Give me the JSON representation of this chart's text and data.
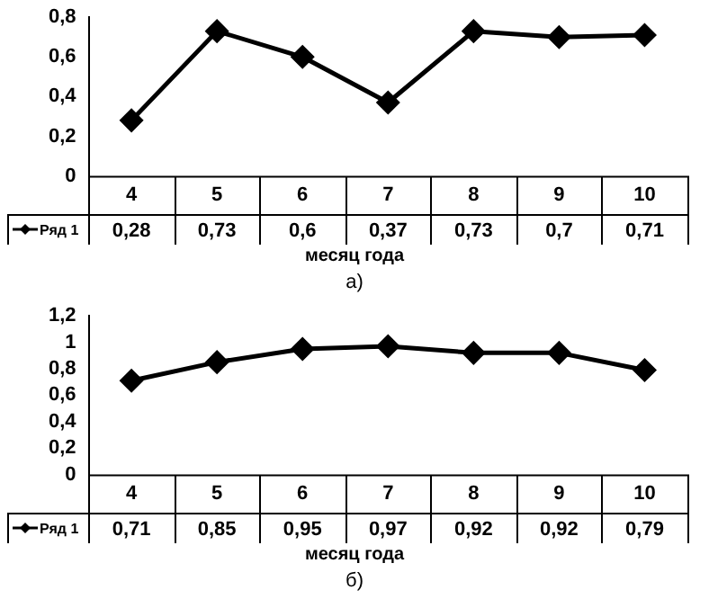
{
  "chart_data": [
    {
      "type": "line",
      "xlabel": "месяц года",
      "annotations": [
        "а)"
      ],
      "categories": [
        "4",
        "5",
        "6",
        "7",
        "8",
        "9",
        "10"
      ],
      "series": [
        {
          "name": "Ряд 1",
          "color": "#000000",
          "values": [
            0.28,
            0.73,
            0.6,
            0.37,
            0.73,
            0.7,
            0.71
          ],
          "value_labels": [
            "0,28",
            "0,73",
            "0,6",
            "0,37",
            "0,73",
            "0,7",
            "0,71"
          ]
        }
      ],
      "ylim": [
        0,
        0.8
      ],
      "yticks": [
        {
          "value": 0,
          "label": "0"
        },
        {
          "value": 0.2,
          "label": "0,2"
        },
        {
          "value": 0.4,
          "label": "0,4"
        },
        {
          "value": 0.6,
          "label": "0,6"
        },
        {
          "value": 0.8,
          "label": "0,8"
        }
      ],
      "grid": false,
      "legend": "bottom left",
      "marker": "diamond",
      "line_style": "solid"
    },
    {
      "type": "line",
      "xlabel": "месяц года",
      "annotations": [
        "б)"
      ],
      "categories": [
        "4",
        "5",
        "6",
        "7",
        "8",
        "9",
        "10"
      ],
      "series": [
        {
          "name": "Ряд 1",
          "color": "#000000",
          "values": [
            0.71,
            0.85,
            0.95,
            0.97,
            0.92,
            0.92,
            0.79
          ],
          "value_labels": [
            "0,71",
            "0,85",
            "0,95",
            "0,97",
            "0,92",
            "0,92",
            "0,79"
          ]
        }
      ],
      "ylim": [
        0,
        1.2
      ],
      "yticks": [
        {
          "value": 0,
          "label": "0"
        },
        {
          "value": 0.2,
          "label": "0,2"
        },
        {
          "value": 0.4,
          "label": "0,4"
        },
        {
          "value": 0.6,
          "label": "0,6"
        },
        {
          "value": 0.8,
          "label": "0,8"
        },
        {
          "value": 1,
          "label": "1"
        },
        {
          "value": 1.2,
          "label": "1,2"
        }
      ],
      "grid": false,
      "legend": "bottom left",
      "marker": "diamond",
      "line_style": "solid"
    }
  ]
}
